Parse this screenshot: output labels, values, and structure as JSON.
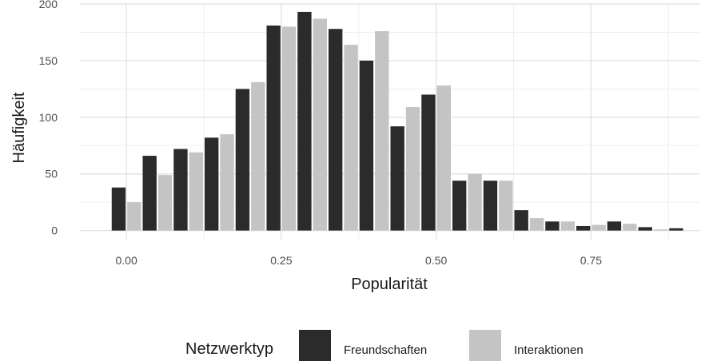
{
  "chart_data": {
    "type": "bar",
    "xlabel": "Popularität",
    "ylabel": "Häufigkeit",
    "xlim": [
      -0.075,
      0.925
    ],
    "ylim": [
      -8,
      200
    ],
    "x_ticks": [
      {
        "value": 0.0,
        "label": "0.00"
      },
      {
        "value": 0.25,
        "label": "0.25"
      },
      {
        "value": 0.5,
        "label": "0.50"
      },
      {
        "value": 0.75,
        "label": "0.75"
      }
    ],
    "y_ticks": [
      {
        "value": 0,
        "label": "0"
      },
      {
        "value": 50,
        "label": "50"
      },
      {
        "value": 100,
        "label": "100"
      },
      {
        "value": 150,
        "label": "150"
      },
      {
        "value": 200,
        "label": "200"
      }
    ],
    "bin_width": 0.05,
    "x": [
      0.0,
      0.05,
      0.1,
      0.15,
      0.2,
      0.25,
      0.3,
      0.35,
      0.4,
      0.45,
      0.5,
      0.55,
      0.6,
      0.65,
      0.7,
      0.75,
      0.8,
      0.85,
      0.9
    ],
    "series": [
      {
        "name": "Freundschaften",
        "color": "#2b2b2b",
        "values": [
          38,
          66,
          72,
          82,
          125,
          181,
          193,
          178,
          150,
          92,
          120,
          44,
          44,
          18,
          8,
          4,
          8,
          3,
          2
        ]
      },
      {
        "name": "Interaktionen",
        "color": "#c4c4c4",
        "values": [
          25,
          49,
          69,
          85,
          131,
          180,
          187,
          164,
          176,
          109,
          128,
          50,
          44,
          11,
          8,
          5,
          6,
          1,
          0
        ]
      }
    ],
    "grid": true,
    "legend_title": "Netzwerktyp",
    "legend_position": "bottom"
  }
}
